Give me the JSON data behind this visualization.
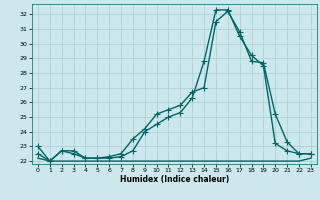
{
  "title": "",
  "xlabel": "Humidex (Indice chaleur)",
  "ylabel": "",
  "background_color": "#cce8ec",
  "grid_color": "#aacccc",
  "line_color": "#006666",
  "xlim": [
    -0.5,
    23.5
  ],
  "ylim": [
    21.8,
    32.7
  ],
  "yticks": [
    22,
    23,
    24,
    25,
    26,
    27,
    28,
    29,
    30,
    31,
    32
  ],
  "xticks": [
    0,
    1,
    2,
    3,
    4,
    5,
    6,
    7,
    8,
    9,
    10,
    11,
    12,
    13,
    14,
    15,
    16,
    17,
    18,
    19,
    20,
    21,
    22,
    23
  ],
  "series1_x": [
    0,
    1,
    2,
    3,
    4,
    5,
    6,
    7,
    8,
    9,
    10,
    11,
    12,
    13,
    14,
    15,
    16,
    17,
    18,
    19,
    20,
    21,
    22,
    23
  ],
  "series1_y": [
    23.0,
    22.0,
    22.7,
    22.7,
    22.2,
    22.2,
    22.2,
    22.3,
    22.7,
    24.0,
    24.5,
    25.0,
    25.3,
    26.3,
    28.8,
    32.3,
    32.3,
    30.5,
    29.2,
    28.5,
    23.2,
    22.7,
    22.5,
    22.5
  ],
  "series2_x": [
    0,
    1,
    2,
    3,
    4,
    5,
    6,
    7,
    8,
    9,
    10,
    11,
    12,
    13,
    14,
    15,
    16,
    17,
    18,
    19,
    20,
    21,
    22,
    23
  ],
  "series2_y": [
    22.2,
    22.0,
    22.0,
    22.0,
    22.0,
    22.0,
    22.0,
    22.0,
    22.0,
    22.0,
    22.0,
    22.0,
    22.0,
    22.0,
    22.0,
    22.0,
    22.0,
    22.0,
    22.0,
    22.0,
    22.0,
    22.0,
    22.0,
    22.2
  ],
  "series3_x": [
    0,
    1,
    2,
    3,
    4,
    5,
    6,
    7,
    8,
    9,
    10,
    11,
    12,
    13,
    14,
    15,
    16,
    17,
    18,
    19,
    20,
    21,
    22,
    23
  ],
  "series3_y": [
    22.5,
    22.0,
    22.7,
    22.5,
    22.2,
    22.2,
    22.3,
    22.5,
    23.5,
    24.2,
    25.2,
    25.5,
    25.8,
    26.7,
    27.0,
    31.5,
    32.2,
    30.8,
    28.8,
    28.7,
    25.2,
    23.3,
    22.5,
    22.5
  ],
  "marker_size": 3,
  "line_width": 1.0
}
